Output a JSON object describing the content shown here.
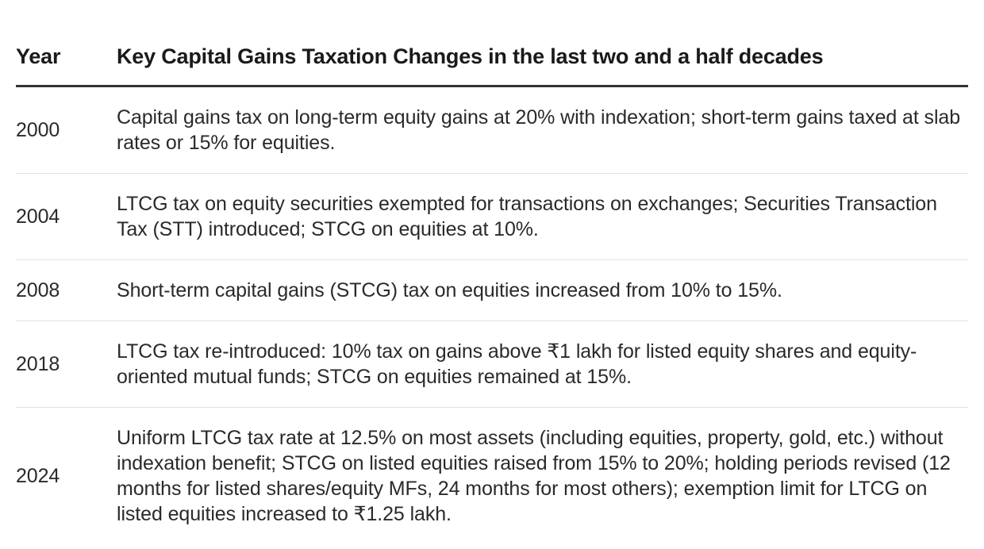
{
  "table": {
    "headers": {
      "year": "Year",
      "change": "Key Capital Gains Taxation Changes in the last two and a half decades"
    },
    "rows": [
      {
        "year": "2000",
        "change": "Capital gains tax on long-term equity gains at 20% with indexation; short-term gains taxed at slab rates or 15% for equities."
      },
      {
        "year": "2004",
        "change": "LTCG tax on equity securities exempted for transactions on exchanges; Securities Transaction Tax (STT) introduced; STCG on equities at 10%."
      },
      {
        "year": "2008",
        "change": "Short-term capital gains (STCG) tax on equities increased from 10% to 15%."
      },
      {
        "year": "2018",
        "change": "LTCG tax re-introduced: 10% tax on gains above ₹1 lakh for listed equity shares and equity-oriented mutual funds; STCG on equities remained at 15%."
      },
      {
        "year": "2024",
        "change": "Uniform LTCG tax rate at 12.5% on most assets (including equities, property, gold, etc.) without indexation benefit; STCG on listed equities raised from 15% to 20%; holding periods revised (12 months for listed shares/equity MFs, 24 months for most others); exemption limit for LTCG on listed equities increased to ₹1.25 lakh."
      }
    ]
  }
}
